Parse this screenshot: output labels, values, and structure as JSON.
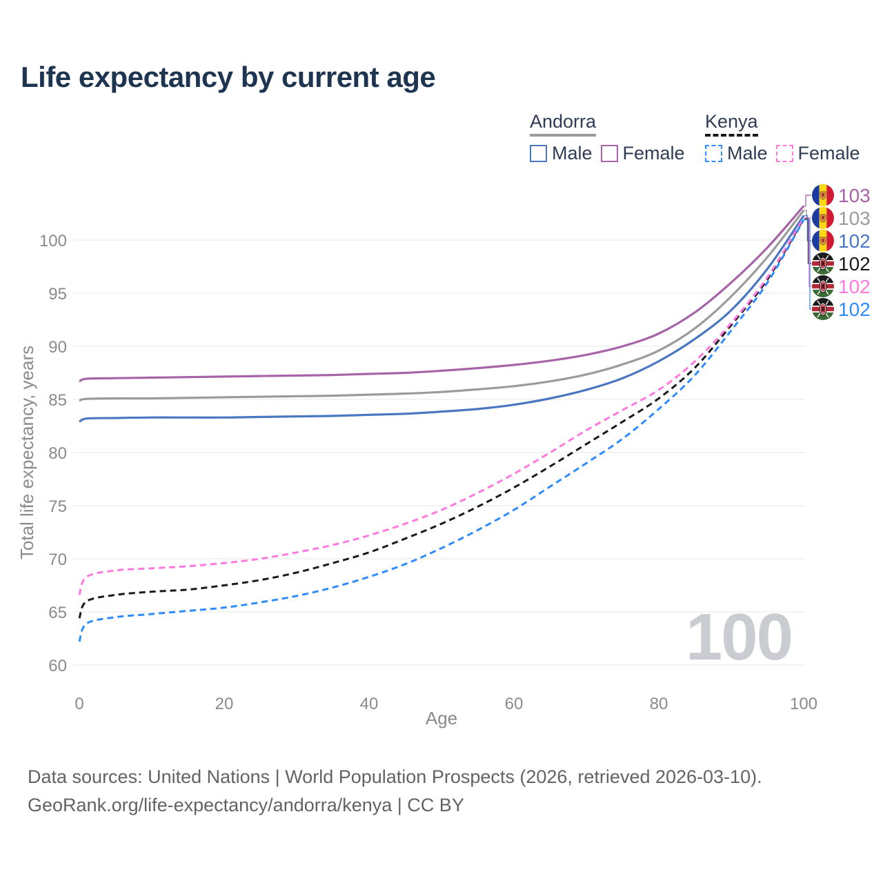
{
  "title": "Life expectancy by current age",
  "legend": {
    "groups": [
      {
        "label": "Andorra",
        "line_style": "solid",
        "underline_color": "#9b9b9b",
        "items": [
          {
            "label": "Male",
            "color": "#4a77c2"
          },
          {
            "label": "Female",
            "color": "#a663a8"
          }
        ]
      },
      {
        "label": "Kenya",
        "line_style": "dashed",
        "underline_color": "#1a1a1a",
        "items": [
          {
            "label": "Male",
            "color": "#2e8bff"
          },
          {
            "label": "Female",
            "color": "#ff78e0"
          }
        ]
      }
    ]
  },
  "hover_age_watermark": "100",
  "footer": {
    "line1": "Data sources: United Nations | World Population Prospects (2026, retrieved 2026-03-10).",
    "line2": "GeoRank.org/life-expectancy/andorra/kenya | CC BY"
  },
  "colors": {
    "title": "#1e3552",
    "tick": "#8a8a8a",
    "grid": "#ececec",
    "watermark": "#c9ccd1",
    "footer_text": "#636363"
  },
  "chart_data": {
    "type": "line",
    "title": "Life expectancy by current age",
    "xlabel": "Age",
    "ylabel": "Total life expectancy, years",
    "xlim": [
      0,
      100
    ],
    "ylim": [
      60,
      103.5
    ],
    "xticks": [
      0,
      20,
      40,
      60,
      80,
      100
    ],
    "yticks": [
      60,
      65,
      70,
      75,
      80,
      85,
      90,
      95,
      100
    ],
    "grid": "horizontal",
    "legend_position": "top-right",
    "x": [
      0,
      1,
      5,
      10,
      15,
      20,
      25,
      30,
      35,
      40,
      45,
      50,
      55,
      60,
      65,
      70,
      75,
      80,
      85,
      90,
      95,
      100
    ],
    "series": [
      {
        "name": "Andorra Female",
        "country": "Andorra",
        "group": "Female",
        "style": "solid",
        "color": "#a663a8",
        "flag": "andorra",
        "end_label": "103",
        "values": [
          86.7,
          86.95,
          87.0,
          87.05,
          87.1,
          87.15,
          87.2,
          87.25,
          87.3,
          87.4,
          87.5,
          87.7,
          87.95,
          88.25,
          88.65,
          89.2,
          90.0,
          91.2,
          93.2,
          96.0,
          99.3,
          103.2
        ]
      },
      {
        "name": "Andorra All",
        "country": "Andorra",
        "group": "All",
        "style": "solid",
        "color": "#9b9b9b",
        "flag": "andorra",
        "end_label": "103",
        "values": [
          84.9,
          85.05,
          85.1,
          85.1,
          85.15,
          85.2,
          85.25,
          85.3,
          85.35,
          85.45,
          85.55,
          85.7,
          85.95,
          86.25,
          86.7,
          87.35,
          88.3,
          89.6,
          91.7,
          94.7,
          98.4,
          102.8
        ]
      },
      {
        "name": "Andorra Male",
        "country": "Andorra",
        "group": "Male",
        "style": "solid",
        "color": "#4a77c2",
        "flag": "andorra",
        "end_label": "102",
        "values": [
          82.9,
          83.2,
          83.25,
          83.3,
          83.3,
          83.3,
          83.35,
          83.4,
          83.45,
          83.55,
          83.65,
          83.85,
          84.1,
          84.5,
          85.1,
          85.9,
          87.0,
          88.6,
          90.7,
          93.4,
          97.3,
          102.3
        ]
      },
      {
        "name": "Kenya All",
        "country": "Kenya",
        "group": "All",
        "style": "dashed",
        "color": "#1a1a1a",
        "flag": "kenya",
        "end_label": "102",
        "values": [
          64.4,
          66.0,
          66.6,
          66.9,
          67.1,
          67.5,
          68.0,
          68.7,
          69.6,
          70.6,
          71.9,
          73.3,
          74.9,
          76.7,
          78.7,
          80.8,
          82.9,
          85.1,
          88.0,
          92.0,
          96.3,
          102.0
        ]
      },
      {
        "name": "Kenya Female",
        "country": "Kenya",
        "group": "Female",
        "style": "dashed",
        "color": "#ff78e0",
        "flag": "kenya",
        "end_label": "102",
        "values": [
          66.6,
          68.3,
          68.9,
          69.1,
          69.3,
          69.6,
          70.0,
          70.6,
          71.3,
          72.2,
          73.3,
          74.6,
          76.2,
          78.0,
          80.0,
          82.1,
          84.0,
          85.9,
          88.6,
          92.2,
          96.5,
          102.1
        ]
      },
      {
        "name": "Kenya Male",
        "country": "Kenya",
        "group": "Male",
        "style": "dashed",
        "color": "#2e8bff",
        "flag": "kenya",
        "end_label": "102",
        "values": [
          62.2,
          63.9,
          64.5,
          64.8,
          65.1,
          65.4,
          65.9,
          66.5,
          67.3,
          68.3,
          69.5,
          71.0,
          72.7,
          74.6,
          76.8,
          79.0,
          81.3,
          84.1,
          87.3,
          91.5,
          96.0,
          101.9
        ]
      }
    ]
  }
}
